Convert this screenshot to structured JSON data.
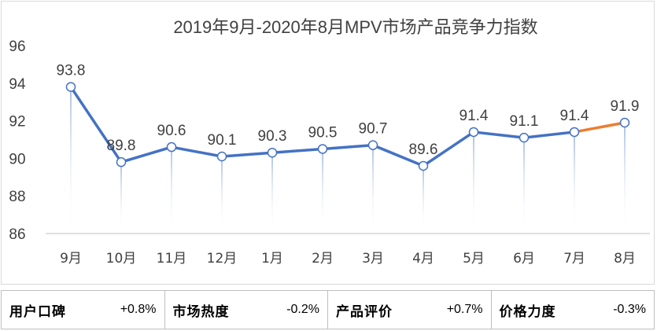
{
  "chart_data": {
    "type": "line",
    "title": "2019年9月-2020年8月MPV市场产品竞争力指数",
    "categories": [
      "9月",
      "10月",
      "11月",
      "12月",
      "1月",
      "2月",
      "3月",
      "4月",
      "5月",
      "6月",
      "7月",
      "8月"
    ],
    "values": [
      93.8,
      89.8,
      90.6,
      90.1,
      90.3,
      90.5,
      90.7,
      89.6,
      91.4,
      91.1,
      91.4,
      91.9
    ],
    "data_labels": [
      "93.8",
      "89.8",
      "90.6",
      "90.1",
      "90.3",
      "90.5",
      "90.7",
      "89.6",
      "91.4",
      "91.1",
      "91.4",
      "91.9"
    ],
    "yticks": [
      "96",
      "94",
      "92",
      "90",
      "88",
      "86"
    ],
    "ylim": [
      86,
      96
    ],
    "grid": false,
    "line_color": "#4472c4",
    "highlight_color": "#ed7d31",
    "highlight_last_segment": true
  },
  "metrics": [
    {
      "label": "用户口碑",
      "value": "+0.8%"
    },
    {
      "label": "市场热度",
      "value": "-0.2%"
    },
    {
      "label": "产品评价",
      "value": "+0.7%"
    },
    {
      "label": "价格力度",
      "value": "-0.3%"
    }
  ]
}
